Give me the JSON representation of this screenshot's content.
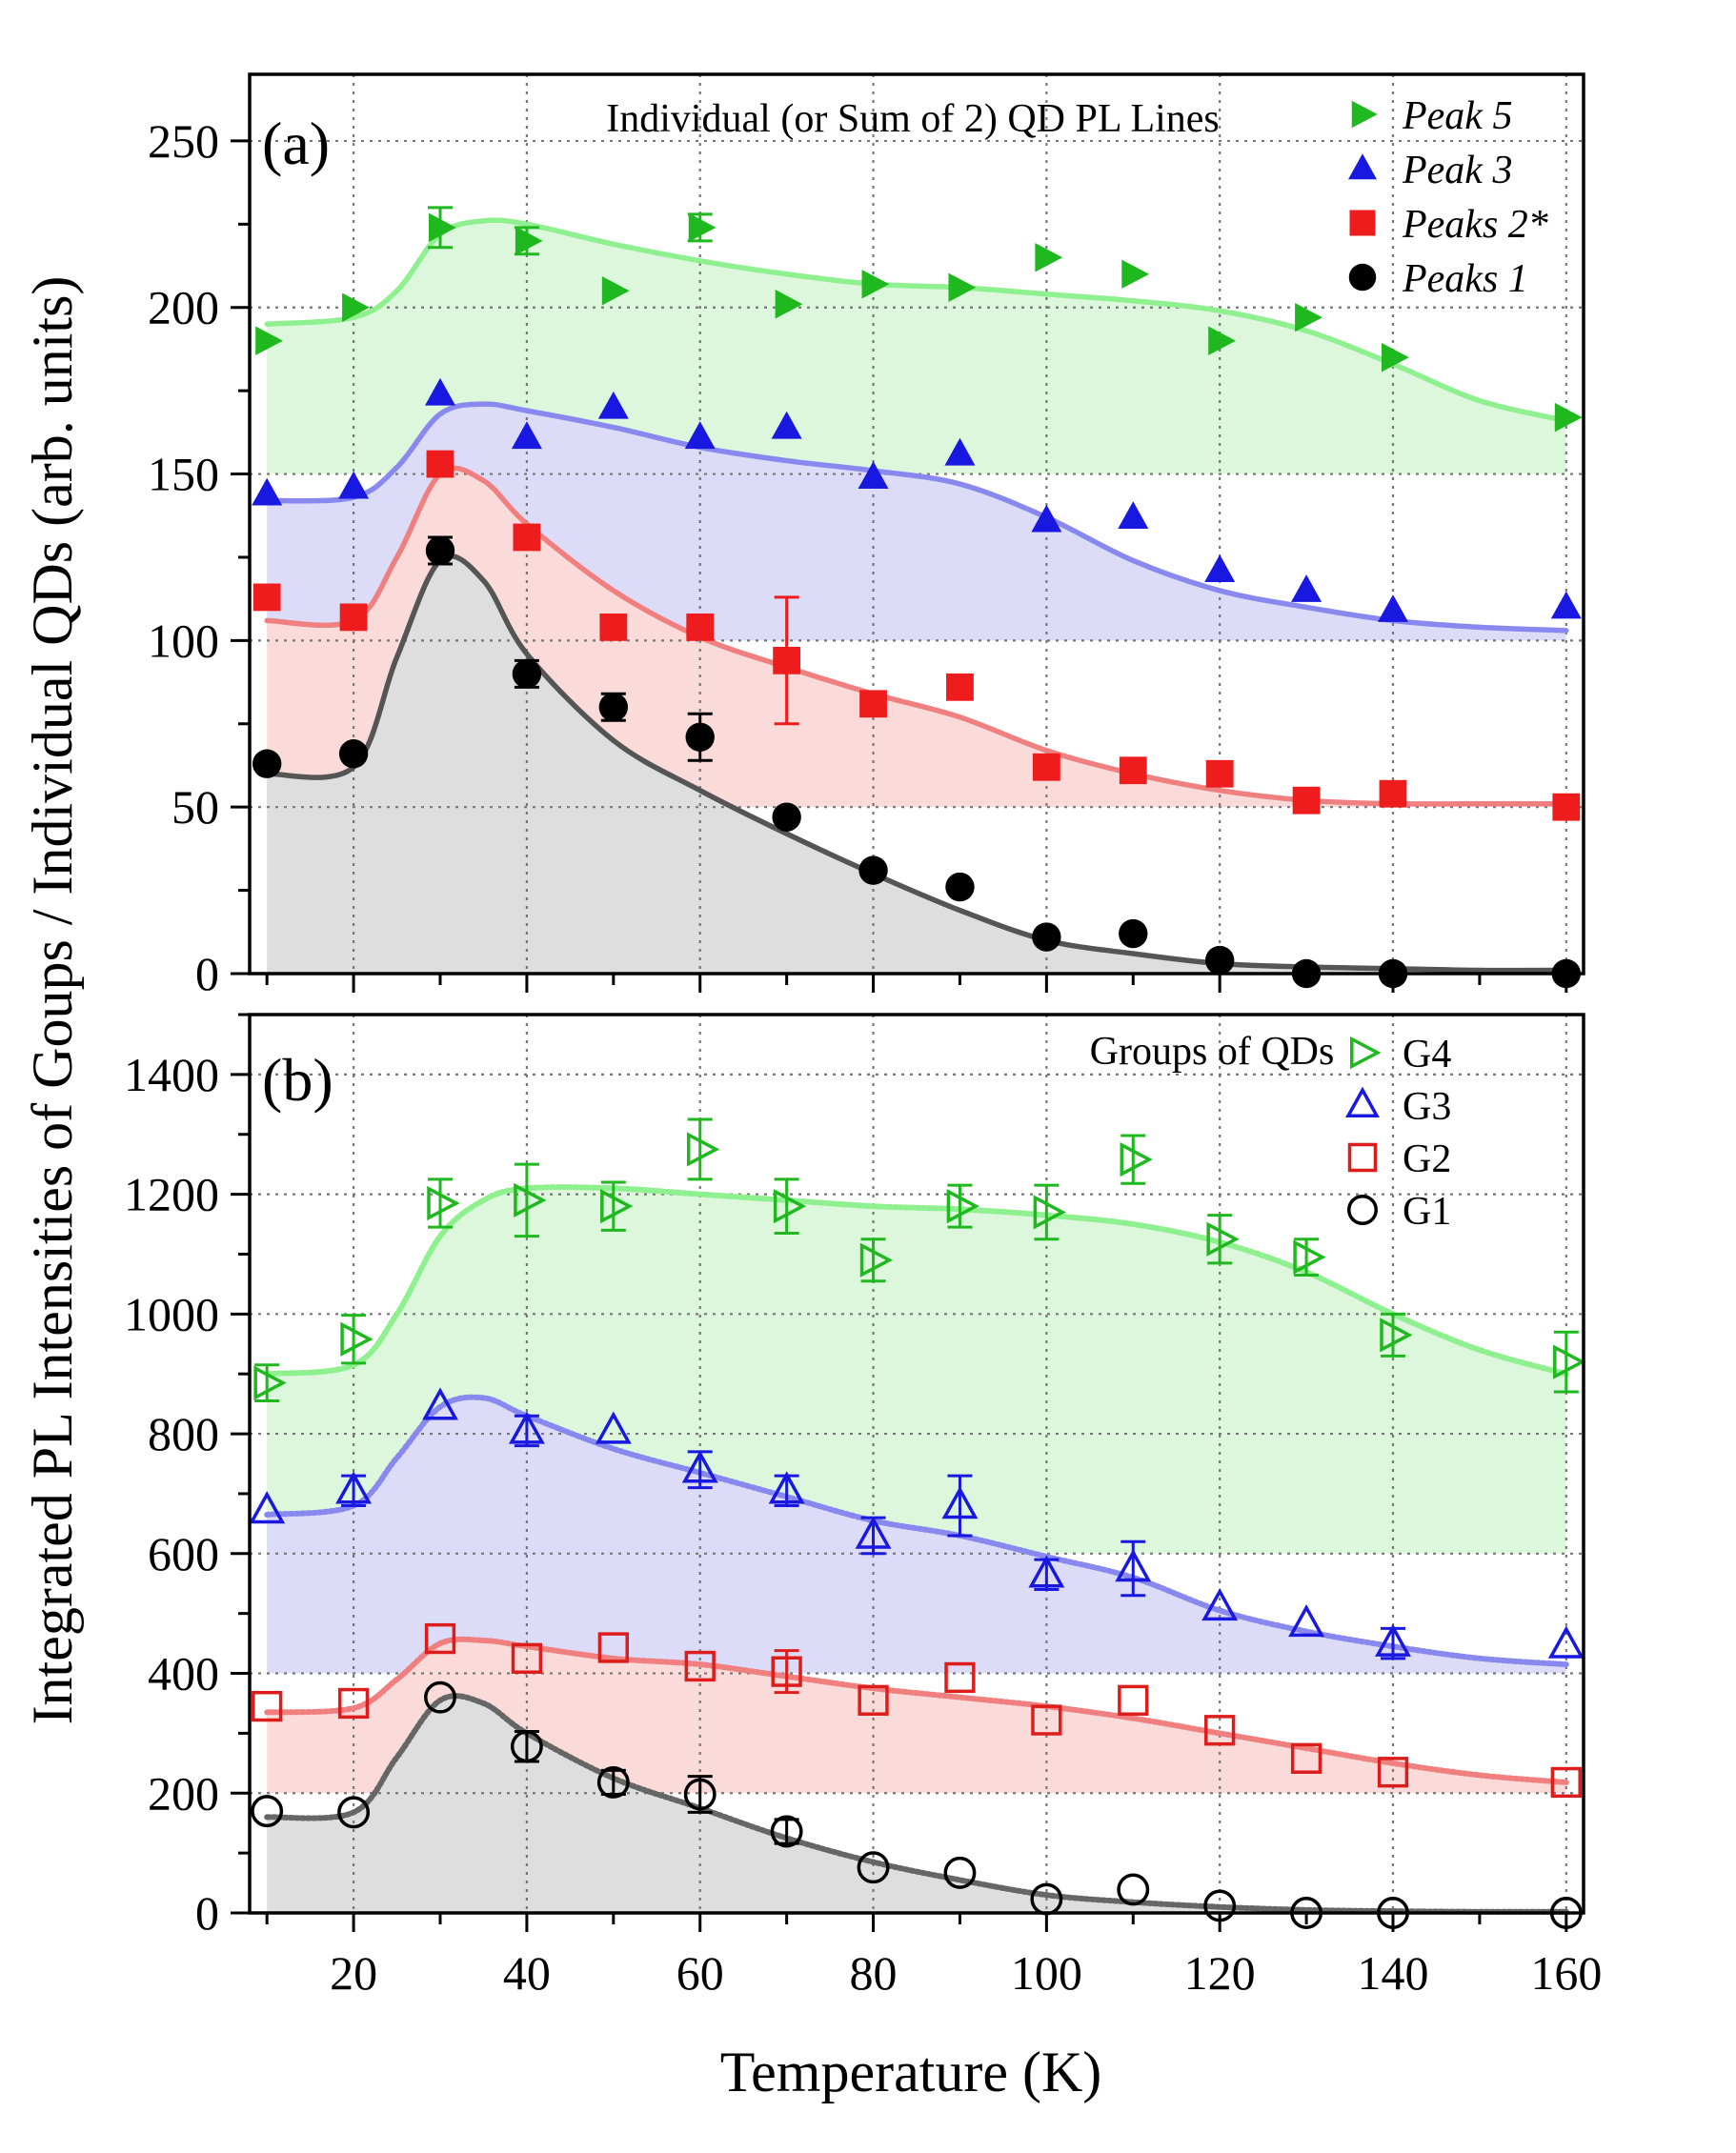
{
  "figure": {
    "ylabel": "Integrated PL Intensities of Goups / Individual QDs (arb. units)",
    "xlabel": "Temperature (K)"
  },
  "chart_data": [
    {
      "type": "scatter",
      "panel_label": "(a)",
      "title": "Individual (or Sum of 2) QD PL Lines",
      "xlim": [
        8,
        162
      ],
      "ylim": [
        0,
        270
      ],
      "x_ticks": [
        20,
        40,
        60,
        80,
        100,
        120,
        140,
        160
      ],
      "y_ticks": [
        0,
        50,
        100,
        150,
        200,
        250
      ],
      "grid": true,
      "legend_position": "top-right",
      "series": [
        {
          "name": "Peak 5",
          "marker": "triangle-right",
          "filled": true,
          "color": "#1fb81f",
          "fill_color": "#ddf7dd",
          "line_color": "#8ef08e",
          "fill_base": 150,
          "x": [
            10,
            20,
            30,
            40,
            50,
            60,
            70,
            80,
            90,
            100,
            110,
            120,
            130,
            140,
            160
          ],
          "y": [
            190,
            200,
            224,
            220,
            205,
            224,
            201,
            207,
            206,
            215,
            210,
            190,
            197,
            185,
            167
          ],
          "err": [
            0,
            0,
            6,
            4,
            0,
            4,
            0,
            0,
            0,
            0,
            0,
            0,
            0,
            0,
            0
          ],
          "fit_x": [
            10,
            20,
            25,
            30,
            35,
            40,
            50,
            60,
            70,
            80,
            90,
            100,
            110,
            120,
            130,
            140,
            150,
            160
          ],
          "fit_y": [
            195,
            197,
            205,
            222,
            226,
            225,
            219,
            214,
            210,
            207,
            206,
            204,
            202,
            199,
            193,
            183,
            172,
            166
          ]
        },
        {
          "name": "Peak 3",
          "marker": "triangle-up",
          "filled": true,
          "color": "#1818e0",
          "fill_color": "#dcdcf8",
          "line_color": "#8888ee",
          "fill_base": 100,
          "x": [
            10,
            20,
            30,
            40,
            50,
            60,
            70,
            80,
            90,
            100,
            110,
            120,
            130,
            140,
            160
          ],
          "y": [
            144,
            146,
            174,
            161,
            170,
            161,
            164,
            149,
            156,
            136,
            137,
            121,
            115,
            109,
            110
          ],
          "err": [
            0,
            0,
            0,
            0,
            0,
            0,
            0,
            0,
            0,
            0,
            0,
            0,
            0,
            0,
            0
          ],
          "fit_x": [
            10,
            20,
            25,
            30,
            35,
            40,
            50,
            60,
            70,
            80,
            90,
            100,
            110,
            120,
            130,
            140,
            150,
            160
          ],
          "fit_y": [
            142,
            143,
            152,
            168,
            171,
            169,
            164,
            158,
            154,
            151,
            147,
            137,
            124,
            115,
            110,
            106,
            104,
            103
          ]
        },
        {
          "name": "Peaks 2*",
          "marker": "square",
          "filled": true,
          "color": "#ee1c1c",
          "fill_color": "#fbdada",
          "line_color": "#f08080",
          "fill_base": 50,
          "x": [
            10,
            20,
            30,
            40,
            50,
            60,
            70,
            80,
            90,
            100,
            110,
            120,
            130,
            140,
            160
          ],
          "y": [
            113,
            107,
            153,
            131,
            104,
            104,
            94,
            81,
            86,
            62,
            61,
            60,
            52,
            54,
            50
          ],
          "err": [
            0,
            0,
            0,
            0,
            0,
            0,
            19,
            0,
            0,
            0,
            0,
            0,
            0,
            0,
            0
          ],
          "fit_x": [
            10,
            20,
            25,
            30,
            35,
            40,
            50,
            60,
            70,
            80,
            90,
            100,
            110,
            120,
            130,
            140,
            150,
            160
          ],
          "fit_y": [
            106,
            106,
            125,
            150,
            148,
            135,
            115,
            101,
            92,
            84,
            77,
            67,
            60,
            55,
            52,
            51,
            51,
            51
          ]
        },
        {
          "name": "Peaks 1",
          "marker": "circle",
          "filled": true,
          "color": "#000000",
          "fill_color": "#dedede",
          "line_color": "#555555",
          "fill_base": 0,
          "x": [
            10,
            20,
            30,
            40,
            50,
            60,
            70,
            80,
            90,
            100,
            110,
            120,
            130,
            140,
            160
          ],
          "y": [
            63,
            66,
            127,
            90,
            80,
            71,
            47,
            31,
            26,
            11,
            12,
            4,
            0,
            0,
            0
          ],
          "err": [
            0,
            0,
            4,
            4,
            4,
            7,
            0,
            0,
            0,
            0,
            0,
            0,
            0,
            0,
            0
          ],
          "fit_x": [
            10,
            20,
            25,
            30,
            35,
            40,
            50,
            60,
            70,
            80,
            90,
            100,
            110,
            120,
            130,
            140,
            150,
            160
          ],
          "fit_y": [
            60,
            62,
            95,
            124,
            118,
            96,
            70,
            55,
            42,
            30,
            19,
            10,
            6,
            3,
            2,
            1.5,
            1,
            1
          ]
        }
      ]
    },
    {
      "type": "scatter",
      "panel_label": "(b)",
      "title": "Groups of QDs",
      "xlim": [
        8,
        162
      ],
      "ylim": [
        0,
        1500
      ],
      "x_ticks": [
        20,
        40,
        60,
        80,
        100,
        120,
        140,
        160
      ],
      "y_ticks": [
        0,
        200,
        400,
        600,
        800,
        1000,
        1200,
        1400
      ],
      "grid": true,
      "legend_position": "top-right",
      "series": [
        {
          "name": "G4",
          "marker": "triangle-right",
          "filled": false,
          "color": "#1fb81f",
          "fill_color": "#ddf7dd",
          "line_color": "#8ef08e",
          "fill_base": 600,
          "x": [
            10,
            20,
            30,
            40,
            50,
            60,
            70,
            80,
            90,
            100,
            110,
            120,
            130,
            140,
            160
          ],
          "y": [
            885,
            958,
            1185,
            1190,
            1180,
            1275,
            1180,
            1090,
            1180,
            1170,
            1258,
            1125,
            1095,
            965,
            920
          ],
          "err": [
            30,
            40,
            40,
            60,
            40,
            50,
            45,
            35,
            35,
            45,
            40,
            40,
            30,
            35,
            50
          ],
          "fit_x": [
            10,
            20,
            25,
            30,
            35,
            40,
            50,
            60,
            70,
            80,
            90,
            100,
            110,
            120,
            130,
            140,
            150,
            160
          ],
          "fit_y": [
            900,
            915,
            1000,
            1130,
            1190,
            1210,
            1210,
            1200,
            1190,
            1180,
            1175,
            1165,
            1150,
            1120,
            1070,
            1000,
            940,
            900
          ]
        },
        {
          "name": "G3",
          "marker": "triangle-up",
          "filled": false,
          "color": "#1818e0",
          "fill_color": "#dcdcf8",
          "line_color": "#8888ee",
          "fill_base": 400,
          "x": [
            10,
            20,
            30,
            40,
            50,
            60,
            70,
            80,
            90,
            100,
            110,
            120,
            130,
            140,
            160
          ],
          "y": [
            672,
            705,
            845,
            805,
            805,
            740,
            705,
            630,
            680,
            565,
            575,
            510,
            483,
            450,
            447
          ],
          "err": [
            0,
            25,
            0,
            25,
            0,
            30,
            25,
            30,
            50,
            25,
            45,
            0,
            0,
            25,
            0
          ],
          "fit_x": [
            10,
            20,
            25,
            30,
            35,
            40,
            50,
            60,
            70,
            80,
            90,
            100,
            110,
            120,
            130,
            140,
            150,
            160
          ],
          "fit_y": [
            665,
            680,
            760,
            845,
            860,
            830,
            775,
            735,
            695,
            655,
            630,
            595,
            560,
            505,
            470,
            445,
            425,
            415
          ]
        },
        {
          "name": "G2",
          "marker": "square",
          "filled": false,
          "color": "#dd1c1c",
          "fill_color": "#fbdada",
          "line_color": "#f08080",
          "fill_base": 200,
          "x": [
            10,
            20,
            30,
            40,
            50,
            60,
            70,
            80,
            90,
            100,
            110,
            120,
            130,
            140,
            160
          ],
          "y": [
            345,
            350,
            458,
            425,
            443,
            412,
            403,
            355,
            393,
            322,
            355,
            305,
            258,
            235,
            218
          ],
          "err": [
            0,
            0,
            0,
            0,
            0,
            0,
            35,
            0,
            0,
            0,
            0,
            0,
            0,
            0,
            0
          ],
          "fit_x": [
            10,
            20,
            25,
            30,
            35,
            40,
            50,
            60,
            70,
            80,
            90,
            100,
            110,
            120,
            130,
            140,
            150,
            160
          ],
          "fit_y": [
            335,
            342,
            390,
            450,
            455,
            445,
            425,
            415,
            395,
            375,
            360,
            345,
            325,
            300,
            275,
            250,
            230,
            218
          ]
        },
        {
          "name": "G1",
          "marker": "circle",
          "filled": false,
          "color": "#000000",
          "fill_color": "#dedede",
          "line_color": "#666666",
          "fill_base": 0,
          "x": [
            10,
            20,
            30,
            40,
            50,
            60,
            70,
            80,
            90,
            100,
            110,
            120,
            130,
            140,
            160
          ],
          "y": [
            170,
            168,
            360,
            278,
            218,
            198,
            136,
            76,
            67,
            23,
            39,
            12,
            0,
            0,
            0
          ],
          "err": [
            0,
            0,
            0,
            25,
            20,
            30,
            20,
            0,
            0,
            0,
            0,
            0,
            0,
            0,
            0
          ],
          "fit_x": [
            10,
            20,
            25,
            30,
            35,
            40,
            50,
            60,
            70,
            80,
            90,
            100,
            110,
            120,
            130,
            140,
            150,
            160
          ],
          "fit_y": [
            160,
            168,
            260,
            355,
            350,
            300,
            225,
            175,
            125,
            85,
            55,
            30,
            18,
            10,
            5,
            3,
            2,
            2
          ]
        }
      ]
    }
  ]
}
